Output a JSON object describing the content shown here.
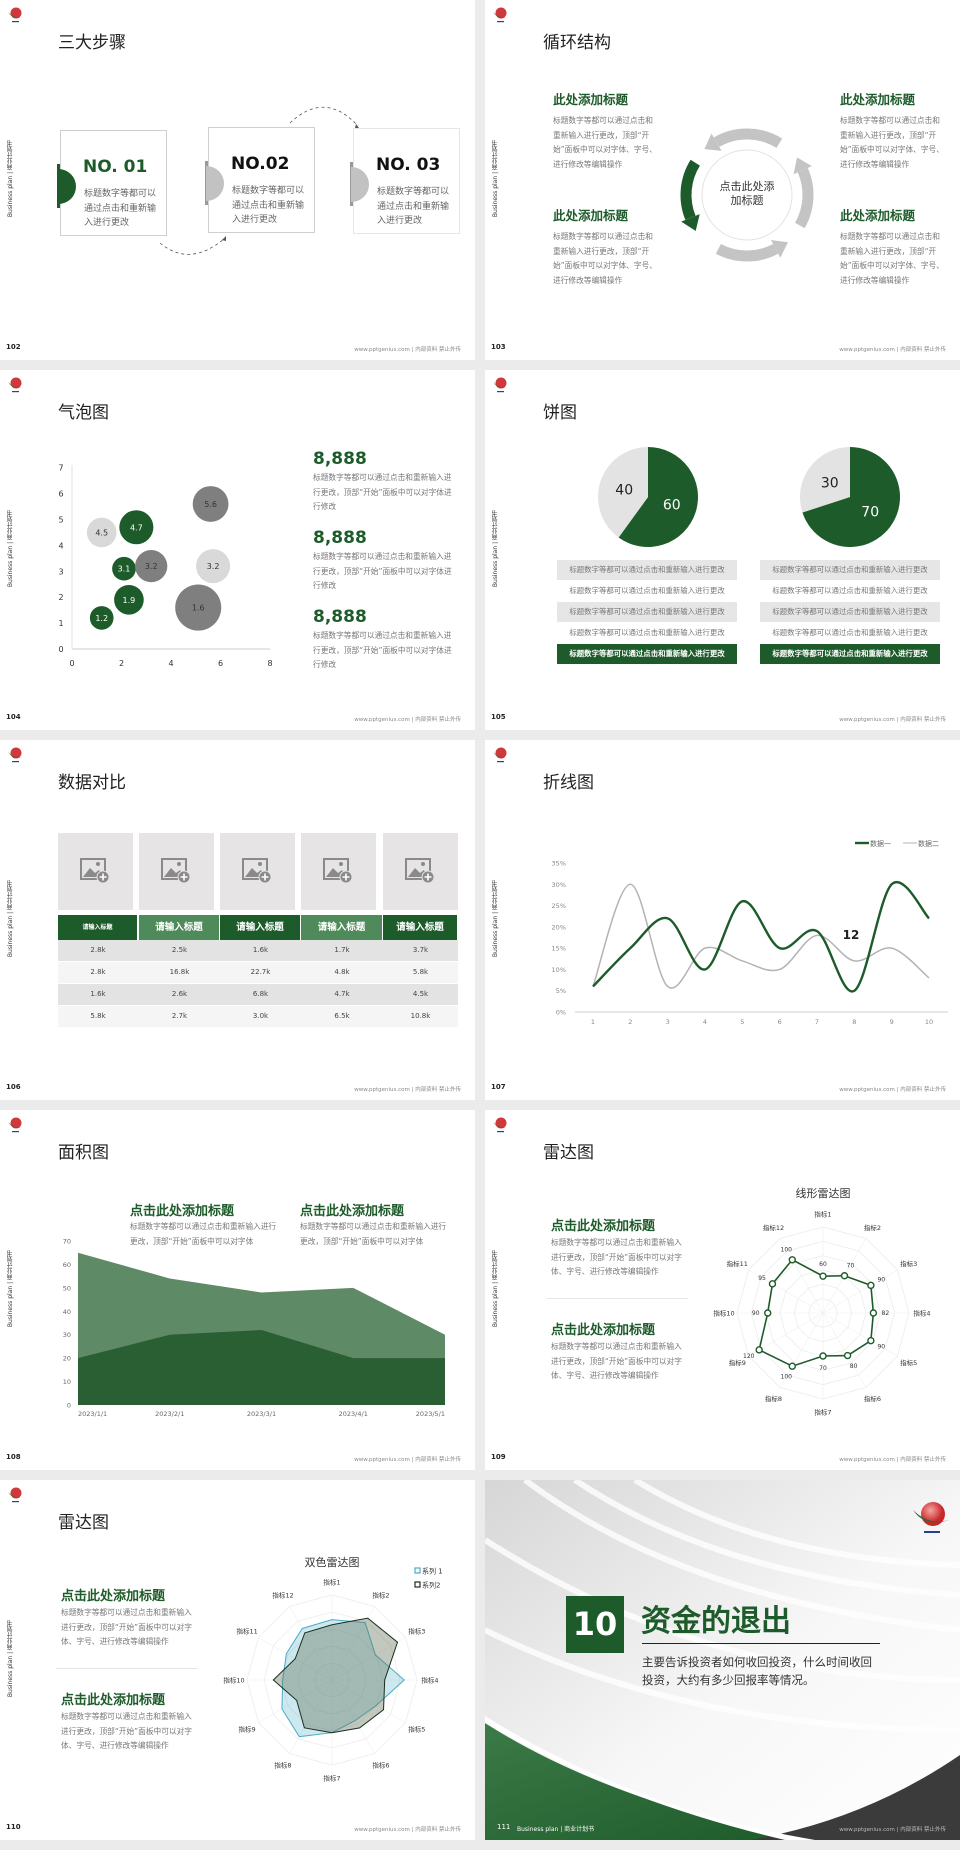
{
  "colors": {
    "green": "#1e5b2a",
    "mid_green": "#4e8a5a",
    "light_green": "#5f8a66",
    "gray": "#7f7f7f",
    "light_gray": "#d9d9d9",
    "series1_blue": "#4bacc6",
    "page_bg": "#ebebeb"
  },
  "common": {
    "side_label": "Business plan | 商业计划书",
    "footer": "www.pptgenius.com | 内部资料 禁止外传",
    "logo_icon": "sun-wave-logo"
  },
  "slides": [
    {
      "page": "102",
      "title": "三大步骤",
      "steps": [
        {
          "no": "NO. 01",
          "text": "标题数字等都可以通过点击和重新输入进行更改"
        },
        {
          "no": "NO.02",
          "text": "标题数字等都可以通过点击和重新输入进行更改"
        },
        {
          "no": "NO. 03",
          "text": "标题数字等都可以通过点击和重新输入进行更改"
        }
      ]
    },
    {
      "page": "103",
      "title": "循环结构",
      "center": "点击此处添加标题",
      "blocks": [
        {
          "heading": "此处添加标题",
          "text": "标题数字等都可以通过点击和重新输入进行更改，顶部“开始”面板中可以对字体、字号、进行修改等编辑操作"
        },
        {
          "heading": "此处添加标题",
          "text": "标题数字等都可以通过点击和重新输入进行更改，顶部“开始”面板中可以对字体、字号、进行修改等编辑操作"
        },
        {
          "heading": "此处添加标题",
          "text": "标题数字等都可以通过点击和重新输入进行更改，顶部“开始”面板中可以对字体、字号、进行修改等编辑操作"
        },
        {
          "heading": "此处添加标题",
          "text": "标题数字等都可以通过点击和重新输入进行更改，顶部“开始”面板中可以对字体、字号、进行修改等编辑操作"
        }
      ]
    },
    {
      "page": "104",
      "title": "气泡图",
      "stats": [
        {
          "value": "8,888",
          "text": "标题数字等都可以通过点击和重新输入进行更改，顶部“开始”面板中可以对字体进行修改"
        },
        {
          "value": "8,888",
          "text": "标题数字等都可以通过点击和重新输入进行更改，顶部“开始”面板中可以对字体进行修改"
        },
        {
          "value": "8,888",
          "text": "标题数字等都可以通过点击和重新输入进行更改，顶部“开始”面板中可以对字体进行修改"
        }
      ]
    },
    {
      "page": "105",
      "title": "饼图",
      "rows": [
        "标题数字等都可以通过点击和重新输入进行更改",
        "标题数字等都可以通过点击和重新输入进行更改",
        "标题数字等都可以通过点击和重新输入进行更改",
        "标题数字等都可以通过点击和重新输入进行更改",
        "标题数字等都可以通过点击和重新输入进行更改"
      ]
    },
    {
      "page": "106",
      "title": "数据对比",
      "image_icon": "add-image-icon",
      "headers": [
        "请输入标题",
        "请输入标题",
        "请输入标题",
        "请输入标题",
        "请输入标题"
      ],
      "rows": [
        [
          "2.8k",
          "2.5k",
          "1.6k",
          "1.7k",
          "3.7k"
        ],
        [
          "2.8k",
          "16.8k",
          "22.7k",
          "4.8k",
          "5.8k"
        ],
        [
          "1.6k",
          "2.6k",
          "6.8k",
          "4.7k",
          "4.5k"
        ],
        [
          "5.8k",
          "2.7k",
          "3.0k",
          "6.5k",
          "10.8k"
        ]
      ]
    },
    {
      "page": "107",
      "title": "折线图"
    },
    {
      "page": "108",
      "title": "面积图",
      "blocks": [
        {
          "heading": "点击此处添加标题",
          "text": "标题数字等都可以通过点击和重新输入进行更改，顶部“开始”面板中可以对字体"
        },
        {
          "heading": "点击此处添加标题",
          "text": "标题数字等都可以通过点击和重新输入进行更改，顶部“开始”面板中可以对字体"
        }
      ]
    },
    {
      "page": "109",
      "title": "雷达图",
      "blocks": [
        {
          "heading": "点击此处添加标题",
          "text": "标题数字等都可以通过点击和重新输入进行更改，顶部“开始”面板中可以对字体、字号、进行修改等编辑操作"
        },
        {
          "heading": "点击此处添加标题",
          "text": "标题数字等都可以通过点击和重新输入进行更改，顶部“开始”面板中可以对字体、字号、进行修改等编辑操作"
        }
      ]
    },
    {
      "page": "110",
      "title": "雷达图",
      "blocks": [
        {
          "heading": "点击此处添加标题",
          "text": "标题数字等都可以通过点击和重新输入进行更改，顶部“开始”面板中可以对字体、字号、进行修改等编辑操作"
        },
        {
          "heading": "点击此处添加标题",
          "text": "标题数字等都可以通过点击和重新输入进行更改，顶部“开始”面板中可以对字体、字号、进行修改等编辑操作"
        }
      ]
    },
    {
      "page": "111",
      "number": "10",
      "title": "资金的退出",
      "text": "主要告诉投资者如何收回投资，什么时间收回投资，大约有多少回报率等情况。"
    }
  ],
  "chart_data": [
    {
      "type": "scatter",
      "variant": "bubble",
      "xlim": [
        0,
        8
      ],
      "ylim": [
        0,
        7
      ],
      "xticks": [
        0,
        2,
        4,
        6,
        8
      ],
      "yticks": [
        0,
        1,
        2,
        3,
        4,
        5,
        6,
        7
      ],
      "points": [
        {
          "x": 1.2,
          "y": 4.5,
          "label": "4.5",
          "size": 2.2,
          "color": "#d9d9d9"
        },
        {
          "x": 2.6,
          "y": 4.7,
          "label": "4.7",
          "size": 2.9,
          "color": "#1e5b2a"
        },
        {
          "x": 2.1,
          "y": 3.1,
          "label": "3.1",
          "size": 1.4,
          "color": "#1e5b2a"
        },
        {
          "x": 3.2,
          "y": 3.2,
          "label": "3.2",
          "size": 2.6,
          "color": "#7f7f7f"
        },
        {
          "x": 5.6,
          "y": 5.6,
          "label": "5.6",
          "size": 3.2,
          "color": "#7f7f7f"
        },
        {
          "x": 5.7,
          "y": 3.2,
          "label": "3.2",
          "size": 2.9,
          "color": "#d9d9d9"
        },
        {
          "x": 2.3,
          "y": 1.9,
          "label": "1.9",
          "size": 2.2,
          "color": "#1e5b2a"
        },
        {
          "x": 1.2,
          "y": 1.2,
          "label": "1.2",
          "size": 1.4,
          "color": "#1e5b2a"
        },
        {
          "x": 5.1,
          "y": 1.6,
          "label": "1.6",
          "size": 5.3,
          "color": "#7f7f7f"
        }
      ]
    },
    {
      "type": "pie",
      "values": [
        60,
        40
      ],
      "labels": [
        "60",
        "40"
      ],
      "colors": [
        "#1e5b2a",
        "#e3e3e3"
      ]
    },
    {
      "type": "pie",
      "values": [
        70,
        30
      ],
      "labels": [
        "70",
        "30"
      ],
      "colors": [
        "#1e5b2a",
        "#e3e3e3"
      ]
    },
    {
      "type": "line",
      "smooth": true,
      "x": [
        "1",
        "2",
        "3",
        "4",
        "5",
        "6",
        "7",
        "8",
        "9",
        "10"
      ],
      "ylim": [
        0,
        35
      ],
      "yticks": [
        "0%",
        "5%",
        "10%",
        "15%",
        "20%",
        "25%",
        "30%",
        "35%"
      ],
      "legend": "top-right",
      "annotation": "12",
      "series": [
        {
          "name": "数据一",
          "values": [
            6,
            15,
            22,
            10,
            26,
            15,
            19,
            5,
            30,
            22
          ],
          "color": "#1e5b2a"
        },
        {
          "name": "数据二",
          "values": [
            6,
            30,
            6,
            15,
            12,
            10,
            18,
            12,
            15,
            8
          ],
          "color": "#b3b3b3"
        }
      ]
    },
    {
      "type": "area",
      "x": [
        "2023/1/1",
        "2023/2/1",
        "2023/3/1",
        "2023/4/1",
        "2023/5/1"
      ],
      "ylim": [
        0,
        70
      ],
      "yticks": [
        0,
        10,
        20,
        30,
        40,
        50,
        60,
        70
      ],
      "series": [
        {
          "values": [
            65,
            54,
            48,
            50,
            30
          ],
          "color": "#5f8a66"
        },
        {
          "values": [
            20,
            30,
            32,
            20,
            20
          ],
          "color": "#2a5e33"
        }
      ]
    },
    {
      "type": "radar",
      "title": "线形雷达图",
      "axes": [
        "指标1",
        "指标2",
        "指标3",
        "指标4",
        "指标5",
        "指标6",
        "指标7",
        "指标8",
        "指标9",
        "指标10",
        "指标11",
        "指标12"
      ],
      "rlim": [
        0,
        140
      ],
      "series": [
        {
          "values": [
            60,
            70,
            90,
            82,
            90,
            80,
            70,
            100,
            120,
            90,
            95,
            100
          ],
          "color": "#1e5b2a"
        }
      ]
    },
    {
      "type": "radar",
      "title": "双色雷达图",
      "axes": [
        "指标1",
        "指标2",
        "指标3",
        "指标4",
        "指标5",
        "指标6",
        "指标7",
        "指标8",
        "指标9",
        "指标10",
        "指标11",
        "指标12"
      ],
      "rlim": [
        0,
        100
      ],
      "legend": "top-right",
      "series": [
        {
          "name": "系列 1",
          "values": [
            71,
            78,
            59,
            85,
            60,
            55,
            62,
            77,
            68,
            58,
            62,
            70
          ],
          "color": "#4bacc6"
        },
        {
          "name": "系列2",
          "values": [
            65,
            84,
            89,
            62,
            70,
            65,
            62,
            65,
            48,
            69,
            50,
            64
          ],
          "color": "#1a2e1f"
        }
      ]
    }
  ]
}
